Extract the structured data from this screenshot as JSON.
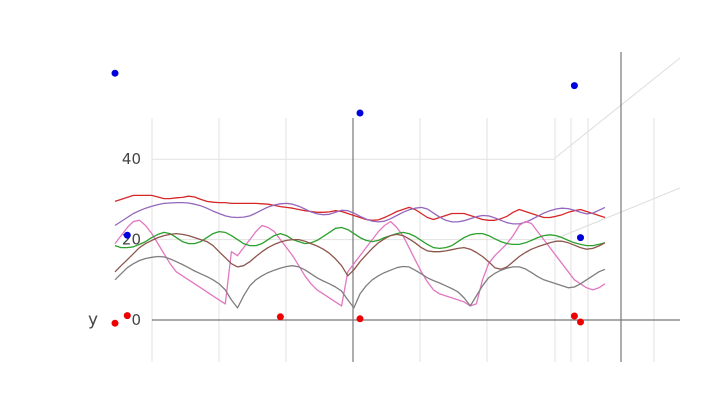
{
  "chart_data": {
    "type": "line",
    "ylabel": "y",
    "ylim": [
      -10,
      50
    ],
    "yticks": [
      0,
      20,
      40
    ],
    "grid": true,
    "x": [
      0,
      1,
      2,
      3,
      4,
      5,
      6,
      7,
      8,
      9,
      10,
      11,
      12,
      13,
      14,
      15,
      16,
      17,
      18,
      19,
      20,
      21,
      22,
      23,
      24,
      25,
      26,
      27,
      28,
      29,
      30,
      31,
      32,
      33,
      34,
      35,
      36,
      37,
      38,
      39,
      40,
      41,
      42,
      43,
      44,
      45,
      46,
      47,
      48,
      49,
      50,
      51,
      52,
      53,
      54,
      55,
      56,
      57,
      58,
      59,
      60,
      61,
      62,
      63,
      64,
      65,
      66,
      67,
      68,
      69,
      70,
      71,
      72,
      73,
      74,
      75,
      76,
      77,
      78,
      79,
      80
    ],
    "series": [
      {
        "color": "#d62728",
        "values": [
          29.5,
          30,
          30.5,
          31,
          31,
          31,
          31,
          30.6,
          30.2,
          30.2,
          30.4,
          30.5,
          30.8,
          30.6,
          30,
          29.5,
          29.3,
          29.2,
          29.2,
          29,
          29,
          29,
          29,
          29,
          28.9,
          28.8,
          28.5,
          28.2,
          28,
          27.8,
          27.5,
          27.2,
          27,
          26.8,
          26.8,
          26.9,
          27.2,
          27,
          26.5,
          26,
          25.5,
          25,
          24.8,
          24.9,
          25.5,
          26.2,
          27,
          27.5,
          28,
          27.5,
          26.5,
          25.5,
          25,
          25.5,
          26,
          26.5,
          26.5,
          26.5,
          26,
          25.5,
          25,
          24.8,
          24.8,
          25.2,
          25.8,
          26.8,
          27.5,
          27,
          26.5,
          26,
          25.5,
          25.5,
          25.8,
          26.2,
          26.8,
          27.2,
          27.5,
          27,
          26.5,
          26,
          25.5
        ]
      },
      {
        "color": "#9467bd",
        "values": [
          23.5,
          24.5,
          25.5,
          26.5,
          27.2,
          27.8,
          28.3,
          28.7,
          29,
          29.1,
          29.2,
          29.2,
          29.1,
          28.8,
          28.4,
          27.8,
          27.1,
          26.5,
          25.9,
          25.6,
          25.5,
          25.6,
          25.9,
          26.6,
          27.4,
          28.1,
          28.6,
          28.9,
          29,
          28.8,
          28.3,
          27.6,
          26.9,
          26.4,
          26.2,
          26.3,
          26.8,
          27.3,
          27.2,
          26.6,
          25.8,
          25.1,
          24.6,
          24.4,
          24.6,
          25.2,
          26,
          26.8,
          27.4,
          27.8,
          28,
          27.6,
          26.6,
          25.6,
          24.8,
          24.4,
          24.4,
          24.7,
          25.2,
          25.7,
          26,
          25.9,
          25.4,
          24.8,
          24.2,
          23.9,
          23.9,
          24.3,
          25,
          25.8,
          26.6,
          27.2,
          27.6,
          27.8,
          27.7,
          27.3,
          26.8,
          26.4,
          26.6,
          27.3,
          28
        ]
      },
      {
        "color": "#e377c2",
        "values": [
          19,
          21,
          23,
          24.5,
          24.8,
          23.5,
          21.5,
          19,
          16.5,
          14,
          12,
          11,
          10,
          9,
          8,
          7,
          6,
          5,
          4,
          17,
          16,
          18,
          20,
          22,
          23.5,
          23,
          22,
          20,
          18,
          16,
          13.5,
          11,
          9,
          7.5,
          6.5,
          5.5,
          4.5,
          3.5,
          12,
          14,
          16,
          18,
          20,
          22,
          23.5,
          24.5,
          23,
          21,
          18,
          15,
          12,
          9.5,
          7.5,
          6.5,
          6,
          5.5,
          5,
          4.5,
          3.5,
          4,
          10,
          14,
          16,
          17.5,
          19,
          21,
          23.5,
          24.5,
          24,
          22,
          20,
          18,
          16,
          14,
          12,
          10,
          9,
          8,
          7.5,
          8,
          9
        ]
      },
      {
        "color": "#2ca02c",
        "values": [
          18.5,
          18,
          18,
          18.2,
          18.8,
          19.5,
          20.5,
          21.3,
          21.8,
          21.5,
          20.5,
          19.5,
          19,
          19,
          19.5,
          20.5,
          21.5,
          22,
          21.8,
          21,
          20,
          19,
          18.5,
          18.5,
          19,
          20,
          21,
          21.5,
          21,
          20,
          19.5,
          19,
          19.2,
          19.8,
          20.8,
          21.8,
          22.8,
          23,
          22.5,
          21.5,
          20.5,
          19.8,
          19.5,
          19.8,
          20.5,
          21,
          21.5,
          21.8,
          21.5,
          20.8,
          19.8,
          18.8,
          18,
          17.8,
          18,
          18.5,
          19.5,
          20.5,
          21.2,
          21.5,
          21.5,
          21,
          20.2,
          19.5,
          19,
          18.8,
          18.8,
          19.2,
          19.8,
          20.5,
          21,
          21.2,
          21,
          20.5,
          19.8,
          19.2,
          18.8,
          18.5,
          18.5,
          18.8,
          19.2
        ]
      },
      {
        "color": "#8c564b",
        "values": [
          12,
          13.5,
          15,
          16.5,
          18,
          19,
          19.8,
          20.5,
          21,
          21.3,
          21.5,
          21.3,
          21,
          20.5,
          20,
          19.5,
          18.5,
          17,
          15.5,
          14,
          13.2,
          13.5,
          14.5,
          15.8,
          17,
          18,
          18.8,
          19.4,
          19.8,
          20,
          20,
          19.6,
          19,
          18.4,
          17.6,
          16.6,
          15.2,
          13.5,
          11,
          12.5,
          14.5,
          16.2,
          17.8,
          19.2,
          20.2,
          21,
          21.3,
          21,
          20.2,
          19.2,
          18,
          17.2,
          17,
          17,
          17.2,
          17.5,
          17.8,
          18,
          17.6,
          16.8,
          15.8,
          14.5,
          13,
          12.6,
          13.2,
          14.5,
          15.8,
          16.8,
          17.6,
          18.2,
          18.7,
          19.2,
          19.6,
          19.6,
          19.2,
          18.6,
          18,
          17.6,
          17.8,
          18.4,
          19.2
        ]
      },
      {
        "color": "#7f7f7f",
        "values": [
          10,
          11.5,
          13,
          14,
          14.8,
          15.3,
          15.6,
          15.8,
          15.7,
          15.2,
          14.5,
          13.8,
          13,
          12.2,
          11.5,
          10.8,
          10,
          9,
          7.5,
          5,
          3,
          6,
          8.5,
          10,
          11,
          11.8,
          12.4,
          12.9,
          13.3,
          13.5,
          13.2,
          12.5,
          11.5,
          10.5,
          9.7,
          9,
          8.2,
          7.2,
          5,
          3,
          6.5,
          8.5,
          10,
          11,
          11.8,
          12.4,
          13,
          13.3,
          13.2,
          12.4,
          11.5,
          10.5,
          9.8,
          9.2,
          8.5,
          7.8,
          7,
          5.5,
          3.5,
          6,
          8.5,
          10.5,
          11.6,
          12.4,
          12.9,
          13.2,
          13.2,
          12.7,
          11.8,
          10.8,
          10,
          9.5,
          9,
          8.5,
          8,
          8.2,
          9,
          10,
          11,
          12,
          12.6
        ]
      }
    ],
    "scatter": [
      {
        "color": "#0000dd",
        "points": [
          [
            0,
            61.4
          ],
          [
            2,
            21.1
          ],
          [
            40,
            51.5
          ],
          [
            75,
            58.3
          ],
          [
            76,
            20.5
          ]
        ]
      },
      {
        "color": "#ee0000",
        "points": [
          [
            0,
            -0.8
          ],
          [
            2,
            1.1
          ],
          [
            27,
            0.8
          ],
          [
            40,
            0.3
          ],
          [
            75,
            1
          ],
          [
            76,
            -0.5
          ]
        ]
      }
    ]
  }
}
